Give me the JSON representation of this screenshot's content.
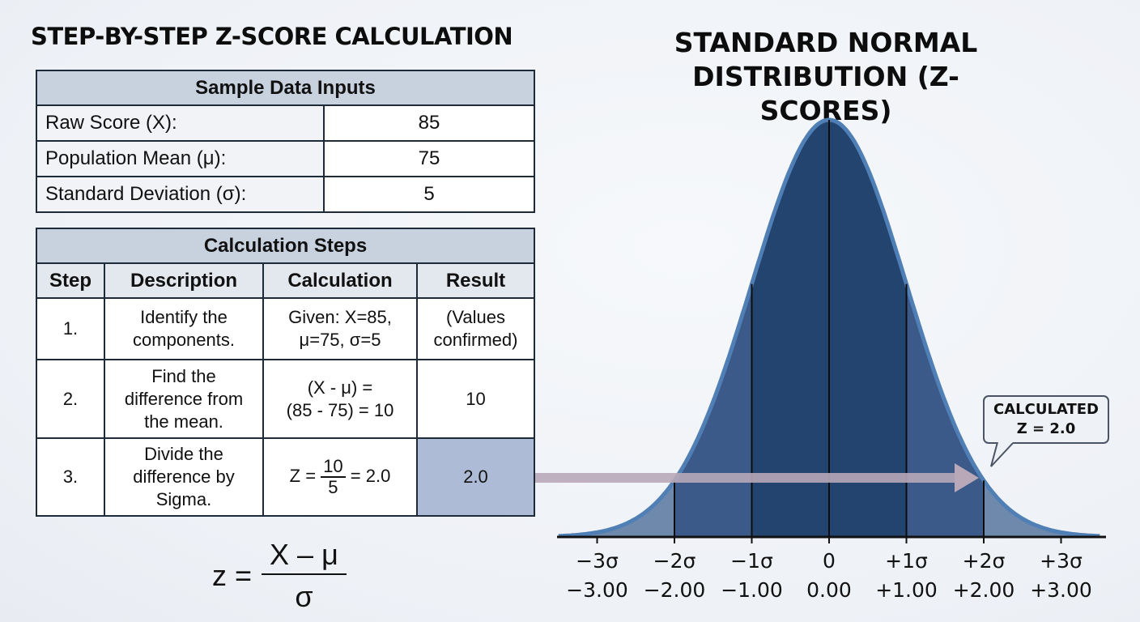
{
  "left_title": "STEP-BY-STEP Z-SCORE CALCULATION",
  "right_title_line1": "STANDARD NORMAL",
  "right_title_line2": "DISTRIBUTION (Z-SCORES)",
  "inputs": {
    "header": "Sample Data Inputs",
    "rows": [
      {
        "label": "Raw Score (X):",
        "value": "85"
      },
      {
        "label": "Population Mean (μ):",
        "value": "75"
      },
      {
        "label": "Standard Deviation (σ):",
        "value": "5"
      }
    ]
  },
  "steps": {
    "header": "Calculation Steps",
    "columns": [
      "Step",
      "Description",
      "Calculation",
      "Result"
    ],
    "rows": [
      {
        "step": "1.",
        "desc1": "Identify the",
        "desc2": "components.",
        "calc1": "Given: X=85,",
        "calc2": "μ=75, σ=5",
        "res1": "(Values",
        "res2": "confirmed)"
      },
      {
        "step": "2.",
        "desc1": "Find the",
        "desc2": "difference from",
        "desc3": "the mean.",
        "calc1": "(X - μ) =",
        "calc2": "(85 - 75) = 10",
        "res": "10"
      },
      {
        "step": "3.",
        "desc1": "Divide the",
        "desc2": "difference by",
        "desc3": "Sigma.",
        "calc_prefix": "Z =",
        "calc_num": "10",
        "calc_den": "5",
        "calc_suffix": "= 2.0",
        "res": "2.0"
      }
    ]
  },
  "formula": {
    "lhs": "z =",
    "num": "X – μ",
    "den": "σ"
  },
  "callout": {
    "line1": "CALCULATED",
    "line2": "Z = 2.0"
  },
  "chart_data": {
    "type": "area",
    "x_ticks_sigma": [
      "−3σ",
      "−2σ",
      "−1σ",
      "0",
      "+1σ",
      "+2σ",
      "+3σ"
    ],
    "x_ticks_value": [
      "−3.00",
      "−2.00",
      "−1.00",
      "0.00",
      "+1.00",
      "+2.00",
      "+3.00"
    ],
    "x_positions": [
      -3,
      -2,
      -1,
      0,
      1,
      2,
      3
    ],
    "xlim": [
      -3.5,
      3.5
    ],
    "highlight_z": 2.0,
    "colors": {
      "outer": "#6f89ad",
      "middle": "#3b5a8a",
      "inner": "#23446f",
      "outline": "#4f7fb5",
      "arrow": "#b8a8b8"
    }
  }
}
